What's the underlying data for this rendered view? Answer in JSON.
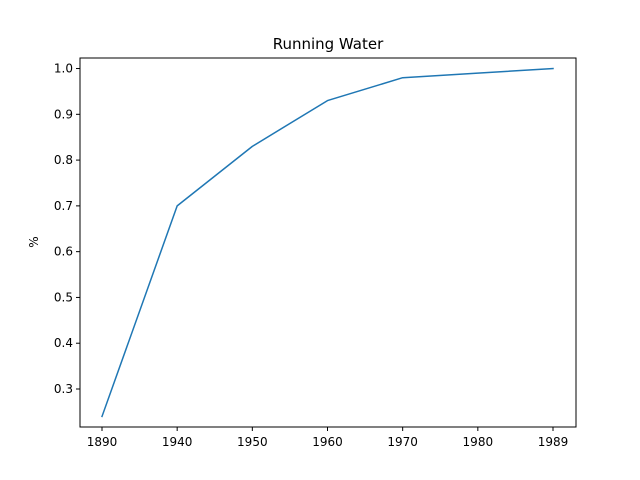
{
  "chart_data": {
    "type": "line",
    "title": "Running Water",
    "xlabel": "",
    "ylabel": "%",
    "x": [
      "1890",
      "1940",
      "1950",
      "1960",
      "1970",
      "1980",
      "1989"
    ],
    "series": [
      {
        "values": [
          0.24,
          0.7,
          0.83,
          0.93,
          0.98,
          0.99,
          1.0
        ]
      }
    ],
    "yticks": [
      "0.3",
      "0.4",
      "0.5",
      "0.6",
      "0.7",
      "0.8",
      "0.9",
      "1.0"
    ],
    "ylim": [
      0.217,
      1.023
    ],
    "grid": false,
    "legend": "none",
    "colors": {
      "line": "#1f77b4",
      "axes": "#000000",
      "background": "#ffffff"
    }
  }
}
